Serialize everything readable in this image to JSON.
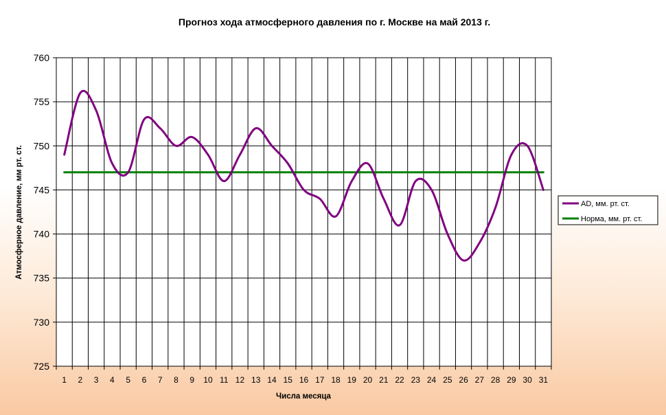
{
  "chart_data": {
    "type": "line",
    "title": "Прогноз хода атмосферного давления по г. Москве на май 2013 г.",
    "xlabel": "Числа месяца",
    "ylabel": "Атмосферное давление, мм рт. ст.",
    "categories": [
      "1",
      "2",
      "3",
      "4",
      "5",
      "6",
      "7",
      "8",
      "9",
      "10",
      "11",
      "12",
      "13",
      "14",
      "15",
      "16",
      "17",
      "18",
      "19",
      "20",
      "21",
      "22",
      "23",
      "24",
      "25",
      "26",
      "27",
      "28",
      "29",
      "30",
      "31"
    ],
    "yticks": [
      "725",
      "730",
      "735",
      "740",
      "745",
      "750",
      "755",
      "760"
    ],
    "ylim": [
      725,
      760
    ],
    "grid": true,
    "legend_position": "right",
    "series": [
      {
        "name": "AD, мм. рт. ст.",
        "color": "#800080",
        "values": [
          749,
          756,
          754,
          748,
          747,
          753,
          752,
          750,
          751,
          749,
          746,
          749,
          752,
          750,
          748,
          745,
          744,
          742,
          746,
          748,
          744,
          741,
          746,
          745,
          740,
          737,
          739,
          743,
          749,
          750,
          745
        ]
      },
      {
        "name": "Норма, мм. рт. ст.",
        "color": "#008000",
        "values": [
          747,
          747,
          747,
          747,
          747,
          747,
          747,
          747,
          747,
          747,
          747,
          747,
          747,
          747,
          747,
          747,
          747,
          747,
          747,
          747,
          747,
          747,
          747,
          747,
          747,
          747,
          747,
          747,
          747,
          747,
          747
        ]
      }
    ]
  }
}
